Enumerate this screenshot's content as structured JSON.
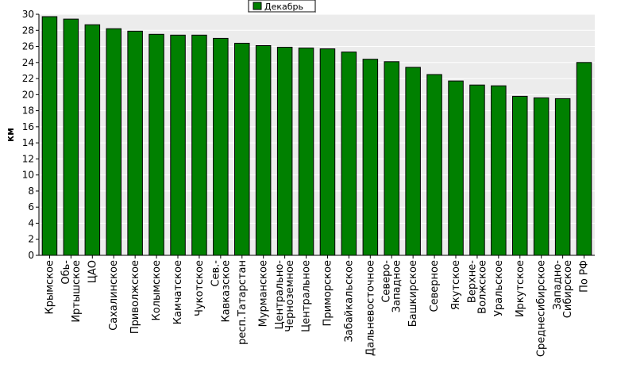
{
  "chart_data": {
    "type": "bar",
    "title": "",
    "xlabel": "",
    "ylabel": "км",
    "ylim": [
      0,
      30
    ],
    "yticks": [
      0,
      2,
      4,
      6,
      8,
      10,
      12,
      14,
      16,
      18,
      20,
      22,
      24,
      26,
      28,
      30
    ],
    "grid": true,
    "legend_position": "top-center",
    "categories": [
      "Крымское",
      "Обь-Иртышское",
      "ЦАО",
      "Сахалинское",
      "Приволжское",
      "Колымское",
      "Камчатское",
      "Чукотское",
      "Сев.-Кавказское",
      "респ.Татарстан",
      "Мурманское",
      "Центрально-Черноземное",
      "Центральное",
      "Приморское",
      "Забайкальское",
      "Дальневосточное",
      "Северо-Западное",
      "Башкирское",
      "Северное",
      "Якутское",
      "Верхне-Волжское",
      "Уральское",
      "Иркутское",
      "Среднесибирское",
      "Западно-Сибирское",
      "По РФ"
    ],
    "category_lines": [
      [
        "Крымское"
      ],
      [
        "Обь-",
        "Иртышское"
      ],
      [
        "ЦАО"
      ],
      [
        "Сахалинское"
      ],
      [
        "Приволжское"
      ],
      [
        "Колымское"
      ],
      [
        "Камчатское"
      ],
      [
        "Чукотское"
      ],
      [
        "Сев.-",
        "Кавказское"
      ],
      [
        "респ.Татарстан"
      ],
      [
        "Мурманское"
      ],
      [
        "Центрально-",
        "Черноземное"
      ],
      [
        "Центральное"
      ],
      [
        "Приморское"
      ],
      [
        "Забайкальское"
      ],
      [
        "Дальневосточное"
      ],
      [
        "Северо-",
        "Западное"
      ],
      [
        "Башкирское"
      ],
      [
        "Северное"
      ],
      [
        "Якутское"
      ],
      [
        "Верхне-",
        "Волжское"
      ],
      [
        "Уральское"
      ],
      [
        "Иркутское"
      ],
      [
        "Среднесибирское"
      ],
      [
        "Западно-",
        "Сибирское"
      ],
      [
        "По РФ"
      ]
    ],
    "series": [
      {
        "name": "Декабрь",
        "color": "#008000",
        "values": [
          29.7,
          29.4,
          28.7,
          28.2,
          27.9,
          27.5,
          27.4,
          27.4,
          27.0,
          26.4,
          26.1,
          25.9,
          25.8,
          25.7,
          25.3,
          24.4,
          24.1,
          23.4,
          22.5,
          21.7,
          21.2,
          21.1,
          19.8,
          19.6,
          19.5,
          24.0
        ]
      }
    ]
  },
  "colors": {
    "bar": "#008000",
    "plot_background": "#ececec",
    "grid": "#ffffff"
  }
}
